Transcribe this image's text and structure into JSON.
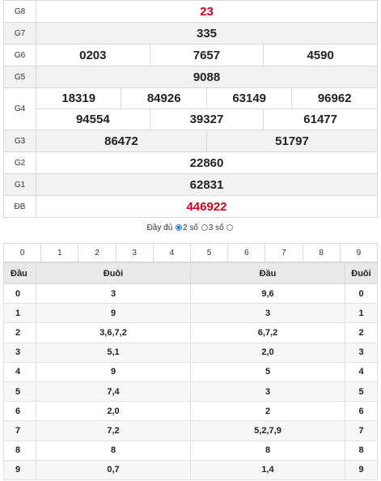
{
  "results": {
    "g8": {
      "label": "G8",
      "values": [
        "23"
      ]
    },
    "g7": {
      "label": "G7",
      "values": [
        "335"
      ]
    },
    "g6": {
      "label": "G6",
      "values": [
        "0203",
        "7657",
        "4590"
      ]
    },
    "g5": {
      "label": "G5",
      "values": [
        "9088"
      ]
    },
    "g4": {
      "label": "G4",
      "row1": [
        "18319",
        "84926",
        "63149",
        "96962"
      ],
      "row2": [
        "94554",
        "39327",
        "61477"
      ]
    },
    "g3": {
      "label": "G3",
      "values": [
        "86472",
        "51797"
      ]
    },
    "g2": {
      "label": "G2",
      "values": [
        "22860"
      ]
    },
    "g1": {
      "label": "G1",
      "values": [
        "62831"
      ]
    },
    "db": {
      "label": "ĐB",
      "values": [
        "446922"
      ]
    }
  },
  "mode": {
    "full_label": "Đầy đủ",
    "two_label": "2 số",
    "three_label": "3 số",
    "selected": "2 số"
  },
  "digit_filter": [
    "0",
    "1",
    "2",
    "3",
    "4",
    "5",
    "6",
    "7",
    "8",
    "9"
  ],
  "loto": {
    "headers": {
      "head_left": "Đầu",
      "tail_left": "Đuôi",
      "head_right": "Đầu",
      "tail_right": "Đuôi"
    },
    "rows": [
      {
        "d": "0",
        "tail": "3",
        "head": "9,6"
      },
      {
        "d": "1",
        "tail": "9",
        "head": "3"
      },
      {
        "d": "2",
        "tail": "3,6,7,2",
        "head": "6,7,2"
      },
      {
        "d": "3",
        "tail": "5,1",
        "head": "2,0"
      },
      {
        "d": "4",
        "tail": "9",
        "head": "5"
      },
      {
        "d": "5",
        "tail": "7,4",
        "head": "3"
      },
      {
        "d": "6",
        "tail": "2,0",
        "head": "2"
      },
      {
        "d": "7",
        "tail": "7,2",
        "head": "5,2,7,9"
      },
      {
        "d": "8",
        "tail": "8",
        "head": "8"
      },
      {
        "d": "9",
        "tail": "0,7",
        "head": "1,4"
      }
    ]
  },
  "colors": {
    "special": "#d0021b",
    "radio_selected": "#2d7fd6"
  }
}
